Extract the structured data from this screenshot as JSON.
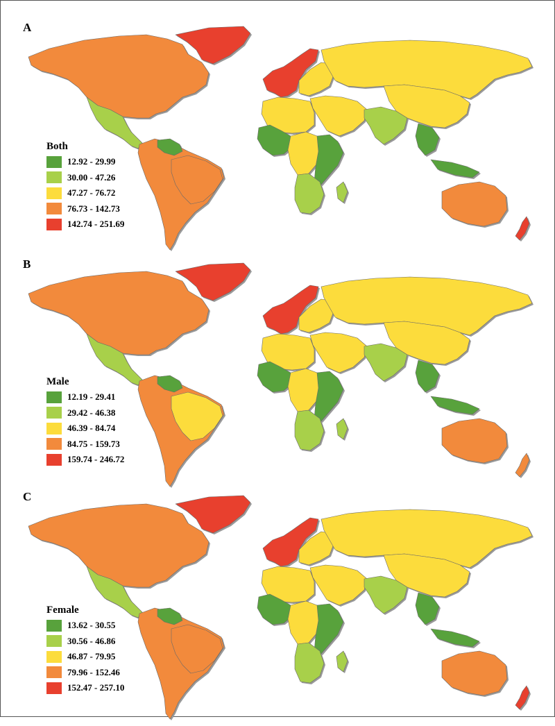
{
  "colors": {
    "dark_green": "#58a23c",
    "light_green": "#a8d04a",
    "yellow": "#fcdc3c",
    "orange": "#f28a3c",
    "red": "#e8402e"
  },
  "panels": [
    {
      "letter": "A",
      "legend_title": "Both",
      "legend": [
        {
          "label": "12.92 - 29.99",
          "color": "#58a23c"
        },
        {
          "label": "30.00 - 47.26",
          "color": "#a8d04a"
        },
        {
          "label": "47.27 - 76.72",
          "color": "#fcdc3c"
        },
        {
          "label": "76.73 - 142.73",
          "color": "#f28a3c"
        },
        {
          "label": "142.74 - 251.69",
          "color": "#e8402e"
        }
      ],
      "regions": {
        "north_america": "#f28a3c",
        "greenland": "#e8402e",
        "mexico_central": "#a8d04a",
        "south_america": "#f28a3c",
        "guianas": "#58a23c",
        "brazil": "#f28a3c",
        "western_europe": "#e8402e",
        "eastern_europe": "#fcdc3c",
        "russia": "#fcdc3c",
        "north_africa": "#fcdc3c",
        "west_africa": "#58a23c",
        "central_africa": "#fcdc3c",
        "east_africa": "#58a23c",
        "southern_africa": "#a8d04a",
        "middle_east": "#fcdc3c",
        "south_asia": "#a8d04a",
        "east_asia": "#fcdc3c",
        "southeast_asia": "#58a23c",
        "australia": "#f28a3c",
        "new_zealand": "#e8402e"
      }
    },
    {
      "letter": "B",
      "legend_title": "Male",
      "legend": [
        {
          "label": "12.19 - 29.41",
          "color": "#58a23c"
        },
        {
          "label": "29.42 - 46.38",
          "color": "#a8d04a"
        },
        {
          "label": "46.39 - 84.74",
          "color": "#fcdc3c"
        },
        {
          "label": "84.75 - 159.73",
          "color": "#f28a3c"
        },
        {
          "label": "159.74 - 246.72",
          "color": "#e8402e"
        }
      ],
      "regions": {
        "north_america": "#f28a3c",
        "greenland": "#e8402e",
        "mexico_central": "#a8d04a",
        "south_america": "#f28a3c",
        "guianas": "#58a23c",
        "brazil": "#fcdc3c",
        "western_europe": "#e8402e",
        "eastern_europe": "#fcdc3c",
        "russia": "#fcdc3c",
        "north_africa": "#fcdc3c",
        "west_africa": "#58a23c",
        "central_africa": "#fcdc3c",
        "east_africa": "#58a23c",
        "southern_africa": "#a8d04a",
        "middle_east": "#fcdc3c",
        "south_asia": "#a8d04a",
        "east_asia": "#fcdc3c",
        "southeast_asia": "#58a23c",
        "australia": "#f28a3c",
        "new_zealand": "#f28a3c"
      }
    },
    {
      "letter": "C",
      "legend_title": "Female",
      "legend": [
        {
          "label": "13.62 - 30.55",
          "color": "#58a23c"
        },
        {
          "label": "30.56 - 46.86",
          "color": "#a8d04a"
        },
        {
          "label": "46.87 - 79.95",
          "color": "#fcdc3c"
        },
        {
          "label": "79.96 - 152.46",
          "color": "#f28a3c"
        },
        {
          "label": "152.47 - 257.10",
          "color": "#e8402e"
        }
      ],
      "regions": {
        "north_america": "#f28a3c",
        "greenland": "#e8402e",
        "mexico_central": "#a8d04a",
        "south_america": "#f28a3c",
        "guianas": "#58a23c",
        "brazil": "#f28a3c",
        "western_europe": "#e8402e",
        "eastern_europe": "#fcdc3c",
        "russia": "#fcdc3c",
        "north_africa": "#fcdc3c",
        "west_africa": "#58a23c",
        "central_africa": "#fcdc3c",
        "east_africa": "#58a23c",
        "southern_africa": "#a8d04a",
        "middle_east": "#fcdc3c",
        "south_asia": "#a8d04a",
        "east_asia": "#fcdc3c",
        "southeast_asia": "#58a23c",
        "australia": "#f28a3c",
        "new_zealand": "#e8402e"
      }
    }
  ]
}
